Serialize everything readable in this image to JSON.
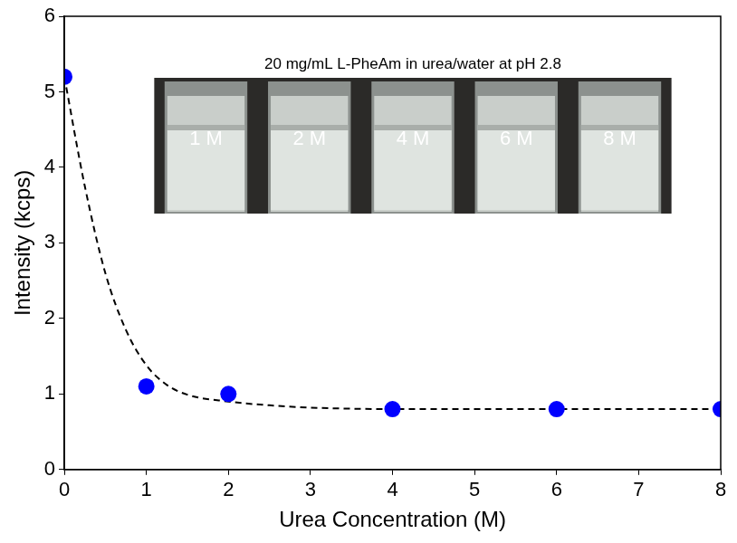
{
  "chart_data": {
    "type": "scatter",
    "title": "20 mg/mL L-PheAm in urea/water at pH 2.8",
    "annotations": [
      "1 M",
      "2 M",
      "4 M",
      "6 M",
      "8 M"
    ],
    "x_label": "Urea Concentration (M)",
    "y_label": "Intensity (kcps)",
    "series": [
      {
        "type": "scatter",
        "color": "#0000ff",
        "marker": "circle",
        "x": [
          0,
          1,
          2,
          4,
          6,
          8
        ],
        "values": [
          5.2,
          1.1,
          1.0,
          0.8,
          0.8,
          0.8
        ]
      },
      {
        "type": "line",
        "color": "#000000",
        "line_style": "dashed",
        "marker": "none",
        "x": [
          0,
          0.25,
          0.5,
          0.75,
          1,
          1.25,
          1.5,
          2,
          2.5,
          3,
          4,
          5,
          6,
          7,
          8
        ],
        "values": [
          5.2,
          3.75,
          2.6,
          1.85,
          1.38,
          1.12,
          0.99,
          0.9,
          0.85,
          0.82,
          0.8,
          0.8,
          0.8,
          0.8,
          0.8
        ]
      }
    ],
    "xlim": [
      0,
      8
    ],
    "ylim": [
      0,
      6
    ],
    "xticks": [
      0,
      1,
      2,
      3,
      4,
      5,
      6,
      7,
      8
    ],
    "yticks": [
      0,
      1,
      2,
      3,
      4,
      5,
      6
    ],
    "grid": false
  }
}
